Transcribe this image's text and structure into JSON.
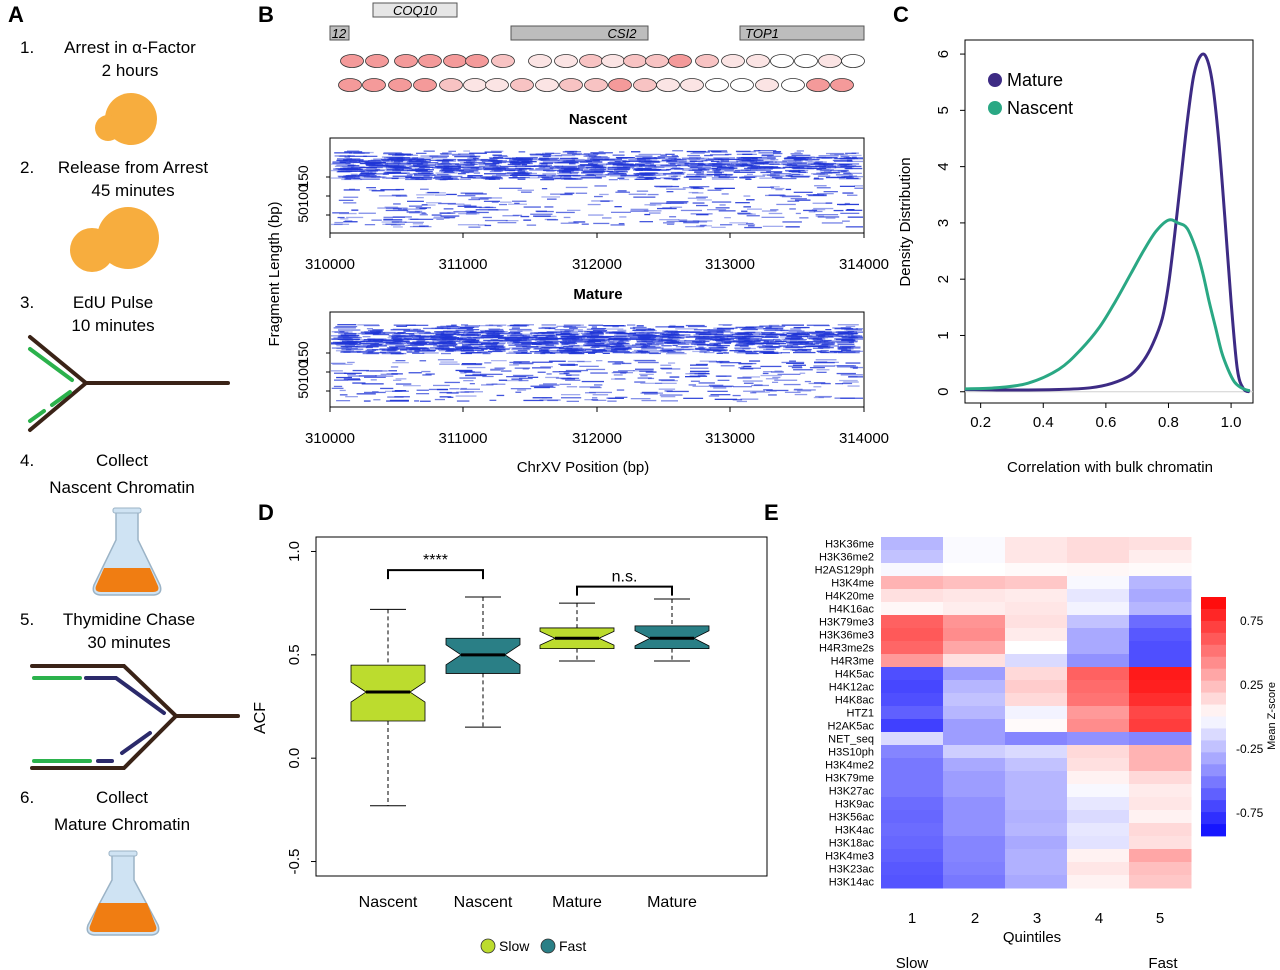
{
  "panel_labels": [
    "A",
    "B",
    "C",
    "D",
    "E"
  ],
  "panel_a": {
    "steps": [
      {
        "number": "1.",
        "lines": [
          "Arrest in α-Factor",
          "2 hours"
        ]
      },
      {
        "number": "2.",
        "lines": [
          "Release from Arrest",
          "45 minutes"
        ]
      },
      {
        "number": "3.",
        "lines": [
          "EdU Pulse",
          "10 minutes"
        ]
      },
      {
        "number": "4.",
        "lines": [
          "Collect",
          "Nascent Chromatin"
        ]
      },
      {
        "number": "5.",
        "lines": [
          "Thymidine Chase",
          "30 minutes"
        ]
      },
      {
        "number": "6.",
        "lines": [
          "Collect",
          "Mature Chromatin"
        ]
      }
    ],
    "colors": {
      "cell": "#f7ad3e",
      "dna_parent": "#3a2317",
      "dna_nascent": "#2bb24c",
      "dna_chase": "#2b2a6b",
      "flask_liquid": "#f07d12",
      "flask_glass": "#cfe3f3"
    }
  },
  "panel_b": {
    "genes": [
      {
        "name": "12",
        "start": 310000,
        "end": 310130
      },
      {
        "name": "COQ10",
        "start": 310300,
        "end": 310920
      },
      {
        "name": "CSI2",
        "start": 311360,
        "end": 312380
      },
      {
        "name": "TOP1",
        "start": 313050,
        "end": 314000
      }
    ],
    "nascent_title": "Nascent",
    "mature_title": "Mature",
    "ylabel": "Fragment Length (bp)",
    "xlabel": "ChrXV Position (bp)",
    "yticks": [
      "150",
      "100",
      "50"
    ],
    "xticks": [
      "310000",
      "311000",
      "312000",
      "313000",
      "314000"
    ],
    "xrange": [
      310000,
      314000
    ],
    "colors": {
      "fragment": "#1f35d6",
      "nucleosome_strong": "#f49a9a",
      "nucleosome_weak": "#fbe4e4",
      "gene_box": "#bdbdbd"
    }
  },
  "panel_c": {
    "chart_data": {
      "type": "line",
      "xlabel": "Correlation with bulk chromatin",
      "ylabel": "Density Distribution",
      "xlim": [
        0.15,
        1.07
      ],
      "ylim": [
        -0.2,
        6.25
      ],
      "xticks": [
        "0.2",
        "0.4",
        "0.6",
        "0.8",
        "1.0"
      ],
      "yticks": [
        "0",
        "1",
        "2",
        "3",
        "4",
        "5",
        "6"
      ],
      "legend_position": "top-left",
      "series": [
        {
          "name": "Mature",
          "color": "#3d2b84",
          "x": [
            0.15,
            0.3,
            0.45,
            0.55,
            0.62,
            0.68,
            0.72,
            0.75,
            0.78,
            0.8,
            0.82,
            0.84,
            0.86,
            0.88,
            0.9,
            0.92,
            0.94,
            0.96,
            0.98,
            1.0,
            1.02,
            1.04,
            1.06
          ],
          "y": [
            0.04,
            0.03,
            0.04,
            0.07,
            0.15,
            0.3,
            0.55,
            0.85,
            1.3,
            1.9,
            2.8,
            3.8,
            4.8,
            5.6,
            5.95,
            5.95,
            5.5,
            4.5,
            3.1,
            1.6,
            0.4,
            0.05,
            0.0
          ]
        },
        {
          "name": "Nascent",
          "color": "#2aa884",
          "x": [
            0.15,
            0.25,
            0.35,
            0.45,
            0.52,
            0.58,
            0.63,
            0.68,
            0.72,
            0.76,
            0.8,
            0.83,
            0.86,
            0.89,
            0.91,
            0.93,
            0.95,
            0.97,
            0.99,
            1.01,
            1.03,
            1.05,
            1.06
          ],
          "y": [
            0.05,
            0.07,
            0.15,
            0.4,
            0.75,
            1.15,
            1.6,
            2.1,
            2.5,
            2.85,
            3.05,
            3.0,
            2.9,
            2.5,
            2.1,
            1.6,
            1.15,
            0.7,
            0.4,
            0.18,
            0.08,
            0.03,
            0.02
          ]
        }
      ]
    }
  },
  "panel_d": {
    "chart_data": {
      "type": "boxplot",
      "ylabel": "ACF",
      "ylim": [
        -0.57,
        1.07
      ],
      "yticks": [
        "1.0",
        "0.5",
        "0.0",
        "-0.5"
      ],
      "categories": [
        "Nascent",
        "Nascent",
        "Mature",
        "Mature"
      ],
      "boxes": [
        {
          "label": "Nascent",
          "group": "Slow",
          "whisker_low": -0.23,
          "q1": 0.18,
          "median": 0.32,
          "q3": 0.45,
          "whisker_high": 0.72
        },
        {
          "label": "Nascent",
          "group": "Fast",
          "whisker_low": 0.15,
          "q1": 0.41,
          "median": 0.5,
          "q3": 0.58,
          "whisker_high": 0.78
        },
        {
          "label": "Mature",
          "group": "Slow",
          "whisker_low": 0.47,
          "q1": 0.53,
          "median": 0.58,
          "q3": 0.63,
          "whisker_high": 0.75
        },
        {
          "label": "Mature",
          "group": "Fast",
          "whisker_low": 0.47,
          "q1": 0.53,
          "median": 0.58,
          "q3": 0.64,
          "whisker_high": 0.77
        }
      ],
      "significance": [
        {
          "between": [
            0,
            1
          ],
          "label": "****",
          "y": 0.91
        },
        {
          "between": [
            2,
            3
          ],
          "label": "n.s.",
          "y": 0.83
        }
      ],
      "legend": [
        {
          "name": "Slow",
          "color": "#bcdc2e"
        },
        {
          "name": "Fast",
          "color": "#2a7f86"
        }
      ]
    }
  },
  "panel_e": {
    "chart_data": {
      "type": "heatmap",
      "xlabel": "Quintiles",
      "x": [
        "1",
        "2",
        "3",
        "4",
        "5"
      ],
      "slow_label": "Slow",
      "fast_label": "Fast",
      "colorbar_label": "Mean Z-score",
      "colorbar_ticks": [
        "0.75",
        "0.25",
        "-0.25",
        "-0.75"
      ],
      "rows": [
        "H3K36me",
        "H3K36me2",
        "H2AS129ph",
        "H3K4me",
        "H4K20me",
        "H4K16ac",
        "H3K79me3",
        "H3K36me3",
        "H4R3me2s",
        "H4R3me",
        "H4K5ac",
        "H4K12ac",
        "H4K8ac",
        "HTZ1",
        "H2AK5ac",
        "NET_seq",
        "H3S10ph",
        "H3K4me2",
        "H3K79me",
        "H3K27ac",
        "H3K9ac",
        "H3K56ac",
        "H3K4ac",
        "H3K18ac",
        "H3K4me3",
        "H3K23ac",
        "H3K14ac"
      ],
      "values": [
        [
          -0.3,
          -0.02,
          0.1,
          0.14,
          0.12
        ],
        [
          -0.25,
          -0.02,
          0.1,
          0.14,
          0.07
        ],
        [
          -0.03,
          0.0,
          0.02,
          0.03,
          0.02
        ],
        [
          0.3,
          0.25,
          0.22,
          -0.03,
          -0.3
        ],
        [
          0.12,
          0.1,
          0.08,
          -0.1,
          -0.35
        ],
        [
          0.03,
          0.07,
          0.1,
          -0.05,
          -0.3
        ],
        [
          0.62,
          0.42,
          0.12,
          -0.25,
          -0.6
        ],
        [
          0.65,
          0.45,
          0.08,
          -0.35,
          -0.68
        ],
        [
          0.6,
          0.35,
          0.0,
          -0.35,
          -0.72
        ],
        [
          0.4,
          0.12,
          -0.15,
          -0.45,
          -0.72
        ],
        [
          -0.72,
          -0.4,
          0.15,
          0.62,
          0.9
        ],
        [
          -0.75,
          -0.3,
          0.2,
          0.58,
          0.88
        ],
        [
          -0.72,
          -0.25,
          0.15,
          0.55,
          0.82
        ],
        [
          -0.65,
          -0.3,
          -0.05,
          0.4,
          0.72
        ],
        [
          -0.78,
          -0.4,
          0.02,
          0.45,
          0.76
        ],
        [
          -0.15,
          -0.4,
          -0.5,
          -0.45,
          -0.5
        ],
        [
          -0.5,
          -0.2,
          -0.15,
          0.15,
          0.3
        ],
        [
          -0.55,
          -0.35,
          -0.25,
          0.12,
          0.3
        ],
        [
          -0.55,
          -0.4,
          -0.3,
          0.05,
          0.15
        ],
        [
          -0.55,
          -0.4,
          -0.3,
          -0.03,
          0.08
        ],
        [
          -0.6,
          -0.45,
          -0.3,
          -0.1,
          0.1
        ],
        [
          -0.62,
          -0.45,
          -0.32,
          -0.15,
          0.05
        ],
        [
          -0.6,
          -0.45,
          -0.3,
          -0.1,
          0.15
        ],
        [
          -0.62,
          -0.5,
          -0.35,
          -0.12,
          0.12
        ],
        [
          -0.65,
          -0.5,
          -0.32,
          0.05,
          0.35
        ],
        [
          -0.68,
          -0.52,
          -0.32,
          0.1,
          0.25
        ],
        [
          -0.7,
          -0.55,
          -0.35,
          0.05,
          0.22
        ]
      ],
      "color_scale": {
        "min": -1.0,
        "max": 1.0,
        "low": "#0a0aff",
        "mid": "#ffffff",
        "high": "#ff0000"
      }
    }
  }
}
